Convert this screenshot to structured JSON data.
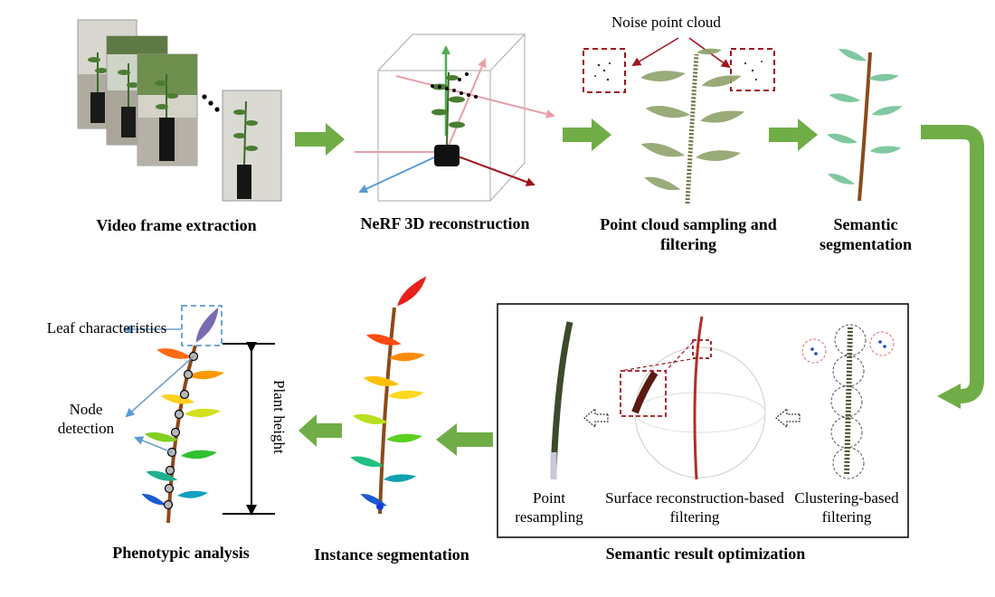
{
  "stages": {
    "video_frame_extraction": "Video frame extraction",
    "nerf_reconstruction": "NeRF 3D reconstruction",
    "point_cloud_sampling": "Point cloud sampling and filtering",
    "semantic_segmentation": "Semantic segmentation",
    "semantic_result_optimization": "Semantic result optimization",
    "instance_segmentation": "Instance segmentation",
    "phenotypic_analysis": "Phenotypic analysis"
  },
  "annotations": {
    "noise_point_cloud": "Noise point cloud",
    "point_resampling": "Point resampling",
    "surface_reconstruction_filtering": "Surface reconstruction-based filtering",
    "clustering_filtering": "Clustering-based filtering",
    "leaf_characteristics": "Leaf characteristics",
    "node_detection": "Node detection",
    "plant_height": "Plant height"
  },
  "colors": {
    "flow_arrow": "#70ad47",
    "noise_box": "#a0141e",
    "leaf_box": "#5b9bd5",
    "stem": "#8b4a1a",
    "leaf_green": "#7fc8a0"
  }
}
